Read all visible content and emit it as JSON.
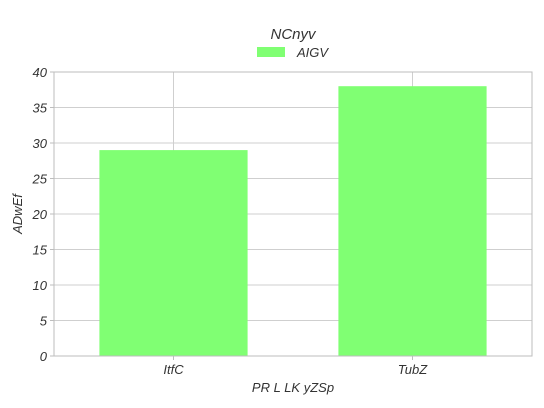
{
  "chart_data": {
    "type": "bar",
    "title": "NCnyv",
    "xlabel": "PR L LK yZSp",
    "ylabel": "ADwEf",
    "categories": [
      "ItfC",
      "TubZ"
    ],
    "series": [
      {
        "name": "AIGV",
        "values": [
          29,
          38
        ],
        "color": "#80ff73"
      }
    ],
    "ylim": [
      0,
      40
    ],
    "yticks": [
      0,
      5,
      10,
      15,
      20,
      25,
      30,
      35,
      40
    ],
    "grid": true,
    "legend": "top-center"
  }
}
